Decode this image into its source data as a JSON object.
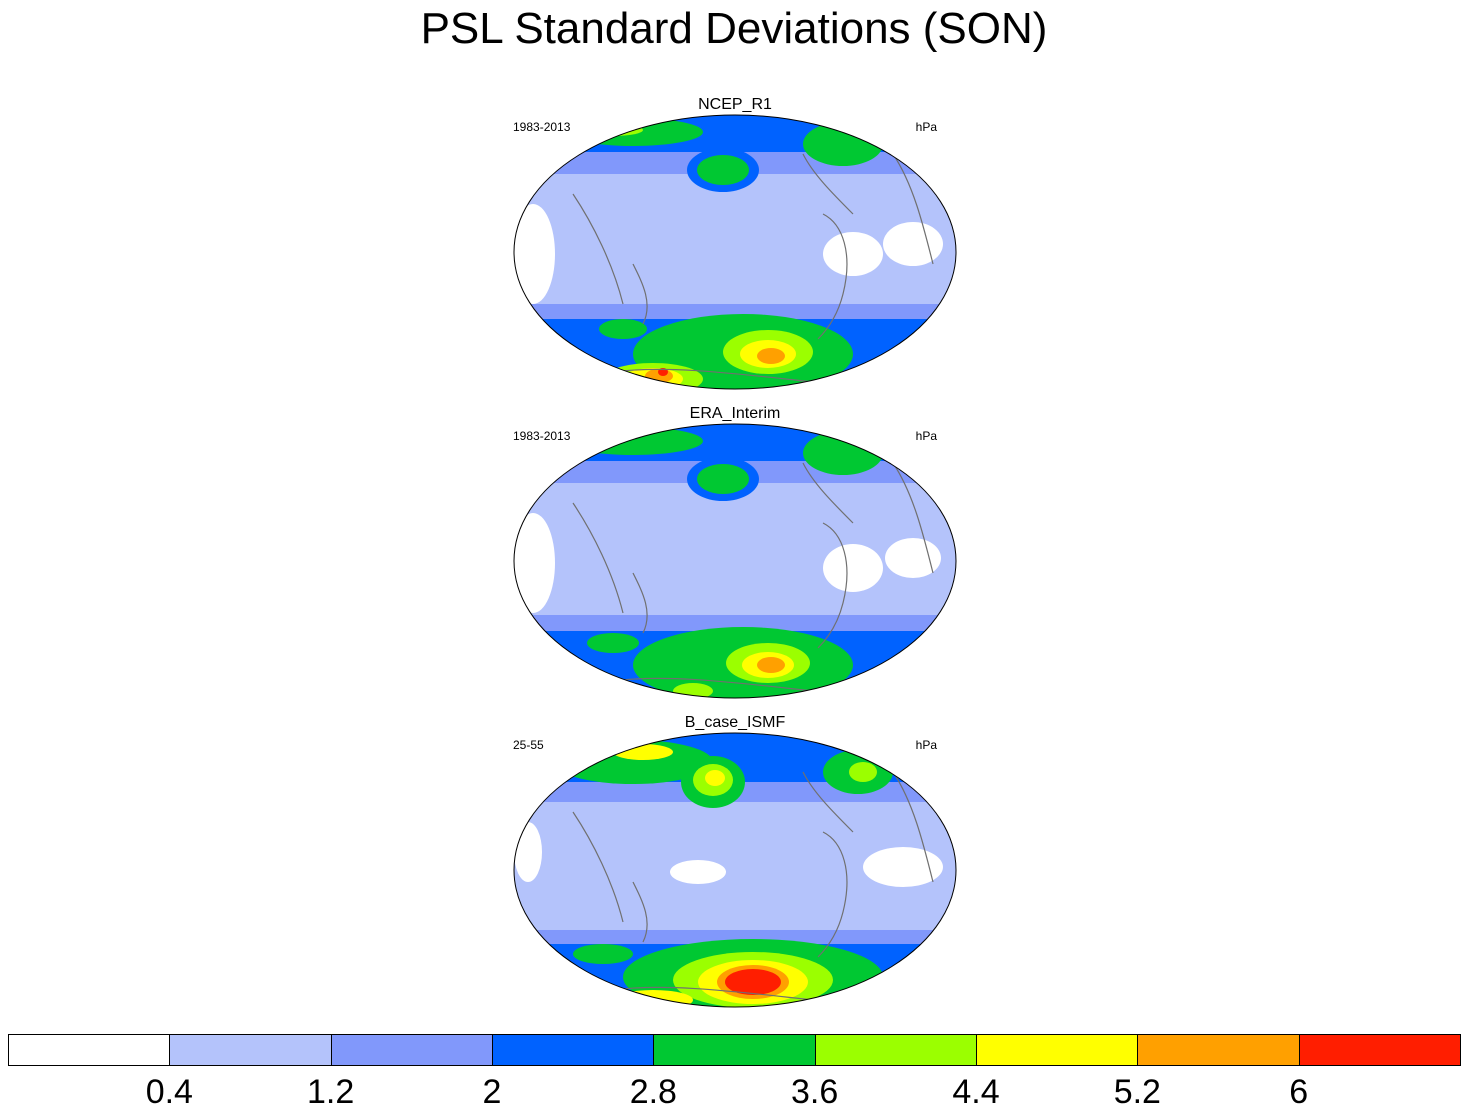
{
  "title": "PSL Standard Deviations (SON)",
  "panels": [
    {
      "title": "NCEP_R1",
      "left_label": "1983-2013",
      "right_label": "hPa"
    },
    {
      "title": "ERA_Interim",
      "left_label": "1983-2013",
      "right_label": "hPa"
    },
    {
      "title": "B_case_ISMF",
      "left_label": "25-55",
      "right_label": "hPa"
    }
  ],
  "colorbar": {
    "colors": [
      "#ffffff",
      "#b4c3fb",
      "#8198fb",
      "#0062ff",
      "#00c832",
      "#9bff00",
      "#ffff00",
      "#ffa000",
      "#ff1e00"
    ],
    "labels": [
      "0.4",
      "1.2",
      "2",
      "2.8",
      "3.6",
      "4.4",
      "5.2",
      "6"
    ]
  }
}
